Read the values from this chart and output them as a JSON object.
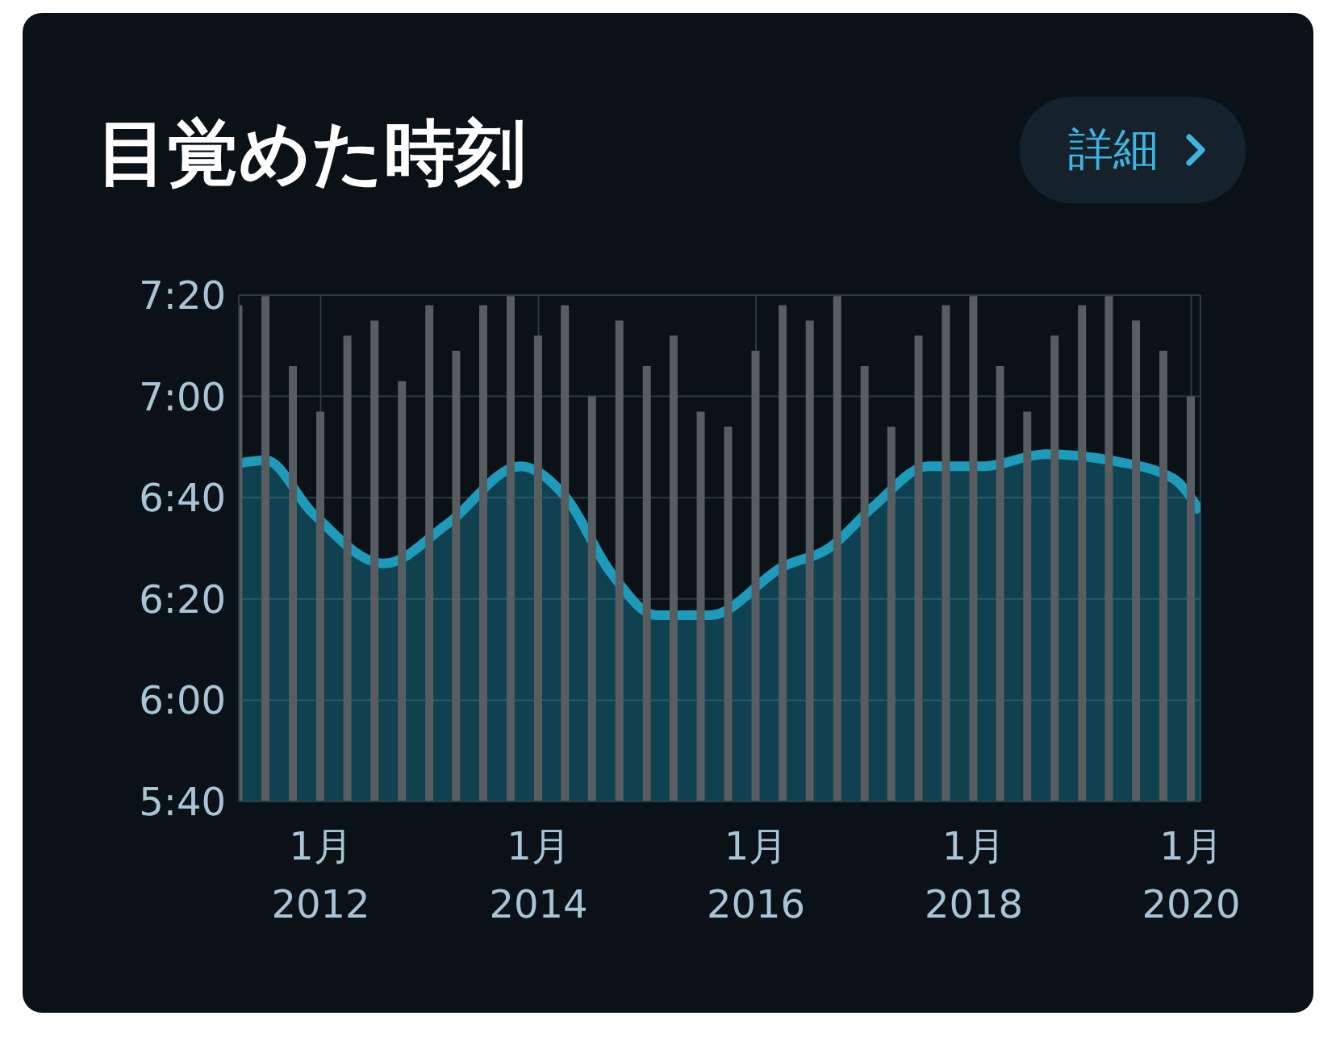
{
  "chart_data": {
    "type": "bar",
    "title": "目覚めた時刻",
    "annotations": [
      "詳細"
    ],
    "xlim": [
      "2011-04",
      "2020-02"
    ],
    "xticks": [
      {
        "value": "2012-01",
        "label": "1月\n2012"
      },
      {
        "value": "2014-01",
        "label": "1月\n2014"
      },
      {
        "value": "2016-01",
        "label": "1月\n2016"
      },
      {
        "value": "2018-01",
        "label": "1月\n2018"
      },
      {
        "value": "2020-01",
        "label": "1月\n2020"
      }
    ],
    "ylim": [
      5.6667,
      7.3333
    ],
    "yticks": [
      {
        "value": 5.6667,
        "label": "5:40"
      },
      {
        "value": 6,
        "label": "6:00"
      },
      {
        "value": 6.3333,
        "label": "6:20"
      },
      {
        "value": 6.6667,
        "label": "6:40"
      },
      {
        "value": 7,
        "label": "7:00"
      },
      {
        "value": 7.3333,
        "label": "7:20"
      }
    ],
    "grid": true,
    "marker": "none",
    "series": [
      {
        "color": "#585d61",
        "x": [
          "2011-04",
          "2011-07",
          "2011-10",
          "2012-01",
          "2012-04",
          "2012-07",
          "2012-10",
          "2013-01",
          "2013-04",
          "2013-07",
          "2013-10",
          "2014-01",
          "2014-04",
          "2014-07",
          "2014-10",
          "2015-01",
          "2015-04",
          "2015-07",
          "2015-10",
          "2016-01",
          "2016-04",
          "2016-07",
          "2016-10",
          "2017-01",
          "2017-04",
          "2017-07",
          "2017-10",
          "2018-01",
          "2018-04",
          "2018-07",
          "2018-10",
          "2019-01",
          "2019-04",
          "2019-07",
          "2019-10",
          "2020-01"
        ],
        "values": [
          7.3,
          7.33,
          7.1,
          6.95,
          7.2,
          7.25,
          7.05,
          7.3,
          7.15,
          7.3,
          7.33,
          7.2,
          7.3,
          7.0,
          7.25,
          7.1,
          7.2,
          6.95,
          6.9,
          7.15,
          7.3,
          7.25,
          7.33,
          7.1,
          6.9,
          7.2,
          7.3,
          7.33,
          7.1,
          6.95,
          7.2,
          7.3,
          7.33,
          7.25,
          7.15,
          7.0
        ]
      },
      {
        "type": "area",
        "color": "#1e9bbb",
        "x": [
          "2011-04",
          "2011-07",
          "2011-12",
          "2012-08",
          "2013-03",
          "2013-11",
          "2014-04",
          "2014-09",
          "2015-02",
          "2015-08",
          "2016-04",
          "2016-09",
          "2017-02",
          "2017-08",
          "2018-02",
          "2018-09",
          "2019-04",
          "2019-11",
          "2020-02"
        ],
        "values": [
          6.78,
          6.79,
          6.62,
          6.45,
          6.58,
          6.77,
          6.67,
          6.42,
          6.28,
          6.28,
          6.44,
          6.5,
          6.64,
          6.77,
          6.77,
          6.81,
          6.79,
          6.73,
          6.62
        ]
      }
    ]
  }
}
